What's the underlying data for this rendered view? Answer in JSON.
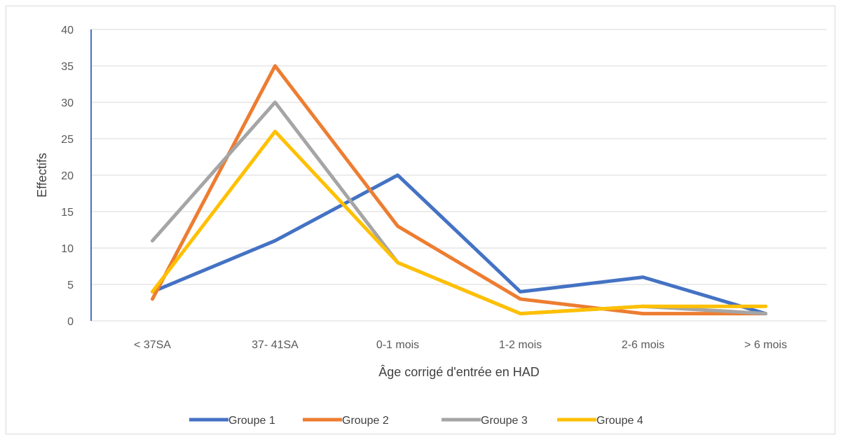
{
  "chart_data": {
    "type": "line",
    "xlabel": "Âge corrigé d'entrée en HAD",
    "ylabel": "Effectifs",
    "categories": [
      "< 37SA",
      "37- 41SA",
      "0-1 mois",
      "1-2 mois",
      "2-6 mois",
      "> 6 mois"
    ],
    "ylim": [
      0,
      40
    ],
    "yticks": [
      0,
      5,
      10,
      15,
      20,
      25,
      30,
      35,
      40
    ],
    "grid": true,
    "legend_position": "bottom",
    "series": [
      {
        "name": "Groupe 1",
        "color": "#4472C4",
        "values": [
          4,
          11,
          20,
          4,
          6,
          1
        ]
      },
      {
        "name": "Groupe 2",
        "color": "#ED7D31",
        "values": [
          3,
          35,
          13,
          3,
          1,
          1
        ]
      },
      {
        "name": "Groupe 3",
        "color": "#A5A5A5",
        "values": [
          11,
          30,
          8,
          1,
          2,
          1
        ]
      },
      {
        "name": "Groupe 4",
        "color": "#FFC000",
        "values": [
          4,
          26,
          8,
          1,
          2,
          2
        ]
      }
    ]
  }
}
